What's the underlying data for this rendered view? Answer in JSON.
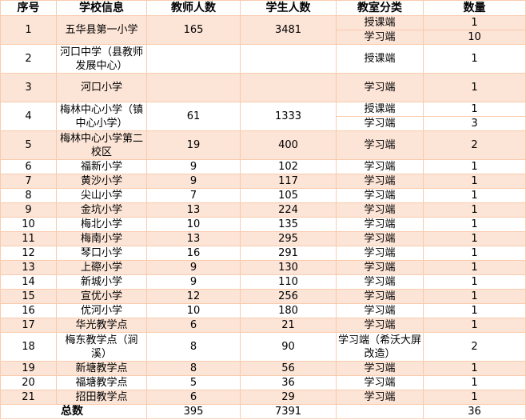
{
  "table": {
    "headers": [
      "序号",
      "学校信息",
      "教师人数",
      "学生人数",
      "教室分类",
      "数量"
    ],
    "rows": [
      {
        "no": "1",
        "school": "五华县第一小学",
        "teachers": "165",
        "students": "3481",
        "types": [
          {
            "type": "授课端",
            "count": "1"
          },
          {
            "type": "学习端",
            "count": "10"
          }
        ]
      },
      {
        "no": "2",
        "school": "河口中学（县教师发展中心）",
        "teachers": "",
        "students": "",
        "types": [
          {
            "type": "授课端",
            "count": "1"
          }
        ]
      },
      {
        "no": "3",
        "school": "河口小学",
        "teachers": "",
        "students": "",
        "types": [
          {
            "type": "学习端",
            "count": "1"
          }
        ]
      },
      {
        "no": "4",
        "school": "梅林中心小学（镇中心小学）",
        "teachers": "61",
        "students": "1333",
        "types": [
          {
            "type": "授课端",
            "count": "1"
          },
          {
            "type": "学习端",
            "count": "3"
          }
        ]
      },
      {
        "no": "5",
        "school": "梅林中心小学第二校区",
        "teachers": "19",
        "students": "400",
        "types": [
          {
            "type": "学习端",
            "count": "2"
          }
        ]
      },
      {
        "no": "6",
        "school": "福新小学",
        "teachers": "9",
        "students": "102",
        "types": [
          {
            "type": "学习端",
            "count": "1"
          }
        ]
      },
      {
        "no": "7",
        "school": "黄沙小学",
        "teachers": "9",
        "students": "117",
        "types": [
          {
            "type": "学习端",
            "count": "1"
          }
        ]
      },
      {
        "no": "8",
        "school": "尖山小学",
        "teachers": "7",
        "students": "105",
        "types": [
          {
            "type": "学习端",
            "count": "1"
          }
        ]
      },
      {
        "no": "9",
        "school": "金坑小学",
        "teachers": "13",
        "students": "224",
        "types": [
          {
            "type": "学习端",
            "count": "1"
          }
        ]
      },
      {
        "no": "10",
        "school": "梅北小学",
        "teachers": "10",
        "students": "135",
        "types": [
          {
            "type": "学习端",
            "count": "1"
          }
        ]
      },
      {
        "no": "11",
        "school": "梅南小学",
        "teachers": "13",
        "students": "295",
        "types": [
          {
            "type": "学习端",
            "count": "1"
          }
        ]
      },
      {
        "no": "12",
        "school": "琴口小学",
        "teachers": "16",
        "students": "291",
        "types": [
          {
            "type": "学习端",
            "count": "1"
          }
        ]
      },
      {
        "no": "13",
        "school": "上磜小学",
        "teachers": "9",
        "students": "130",
        "types": [
          {
            "type": "学习端",
            "count": "1"
          }
        ]
      },
      {
        "no": "14",
        "school": "新城小学",
        "teachers": "9",
        "students": "110",
        "types": [
          {
            "type": "学习端",
            "count": "1"
          }
        ]
      },
      {
        "no": "15",
        "school": "宣优小学",
        "teachers": "12",
        "students": "256",
        "types": [
          {
            "type": "学习端",
            "count": "1"
          }
        ]
      },
      {
        "no": "16",
        "school": "优河小学",
        "teachers": "10",
        "students": "180",
        "types": [
          {
            "type": "学习端",
            "count": "1"
          }
        ]
      },
      {
        "no": "17",
        "school": "华光教学点",
        "teachers": "6",
        "students": "21",
        "types": [
          {
            "type": "学习端",
            "count": "1"
          }
        ]
      },
      {
        "no": "18",
        "school": "梅东教学点（涧溪）",
        "teachers": "8",
        "students": "90",
        "types": [
          {
            "type": "学习端（希沃大屏改造）",
            "count": "2"
          }
        ]
      },
      {
        "no": "19",
        "school": "新塘教学点",
        "teachers": "8",
        "students": "56",
        "types": [
          {
            "type": "学习端",
            "count": "1"
          }
        ]
      },
      {
        "no": "20",
        "school": "福塘教学点",
        "teachers": "5",
        "students": "36",
        "types": [
          {
            "type": "学习端",
            "count": "1"
          }
        ]
      },
      {
        "no": "21",
        "school": "招田教学点",
        "teachers": "6",
        "students": "29",
        "types": [
          {
            "type": "学习端",
            "count": "1"
          }
        ]
      }
    ],
    "total": {
      "label": "总数",
      "teachers": "395",
      "students": "7391",
      "count": "36"
    }
  },
  "colors": {
    "row_fill": "#fce4d6",
    "border": "#f8cbad"
  }
}
